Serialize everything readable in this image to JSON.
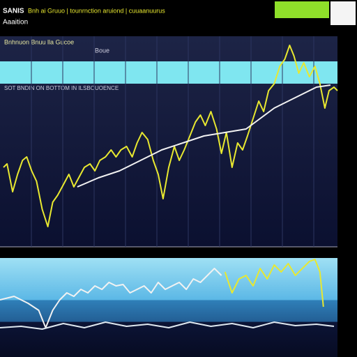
{
  "header": {
    "title": "SANIS",
    "subtitle": "Bnh ai Gruuo | tounrnction aruiond | cuuaanuurus",
    "label": "Aaaition"
  },
  "chart_data": [
    {
      "type": "line",
      "title": "Bnhnuon Bnuu lla Gucoe",
      "subtitle": "Boue",
      "annotation": "SOT BNDIN ON BOTTOM IN ILSBOUOENCE",
      "xlim": [
        0,
        480
      ],
      "ylim": [
        0,
        270
      ],
      "series": [
        {
          "color": "#e8e830",
          "x": [
            5,
            10,
            18,
            25,
            32,
            38,
            45,
            52,
            60,
            68,
            75,
            82,
            90,
            98,
            105,
            112,
            120,
            128,
            135,
            142,
            150,
            158,
            165,
            172,
            180,
            188,
            195,
            202,
            210,
            218,
            225,
            232,
            240,
            248,
            255,
            262,
            270,
            278,
            285,
            292,
            300,
            308,
            315,
            322,
            330,
            338,
            345,
            352,
            360,
            368,
            375,
            382,
            390,
            398,
            405,
            412,
            418,
            425,
            432,
            440,
            448,
            455,
            462,
            468,
            475,
            480
          ],
          "values": [
            90,
            95,
            55,
            80,
            100,
            105,
            85,
            70,
            30,
            5,
            40,
            50,
            65,
            80,
            62,
            75,
            90,
            95,
            85,
            100,
            105,
            115,
            105,
            115,
            120,
            105,
            125,
            140,
            130,
            100,
            80,
            45,
            90,
            120,
            100,
            115,
            135,
            155,
            165,
            150,
            170,
            145,
            110,
            140,
            90,
            125,
            115,
            135,
            160,
            185,
            170,
            200,
            210,
            235,
            245,
            265,
            250,
            225,
            240,
            220,
            235,
            210,
            175,
            200,
            205,
            200
          ]
        },
        {
          "color": "#f2f2f2",
          "x": [
            110,
            140,
            170,
            200,
            230,
            260,
            290,
            320,
            350,
            370,
            390,
            410,
            430,
            450,
            470
          ],
          "values": [
            62,
            75,
            85,
            100,
            115,
            125,
            135,
            140,
            145,
            160,
            175,
            185,
            195,
            205,
            208
          ]
        }
      ]
    },
    {
      "type": "line",
      "xlim": [
        0,
        480
      ],
      "ylim": [
        0,
        142
      ],
      "series": [
        {
          "color": "#e8e830",
          "x": [
            320,
            330,
            340,
            350,
            360,
            370,
            380,
            390,
            400,
            410,
            420,
            430,
            440,
            448,
            455,
            460
          ],
          "values": [
            122,
            92,
            112,
            117,
            102,
            127,
            112,
            132,
            122,
            134,
            117,
            127,
            137,
            140,
            122,
            72
          ]
        },
        {
          "color": "#f2f2f2",
          "x": [
            0,
            20,
            40,
            55,
            65,
            75,
            85,
            95,
            105,
            115,
            125,
            135,
            145,
            155,
            165,
            175,
            185,
            195,
            205,
            215,
            225,
            235,
            245,
            255,
            265,
            275,
            285,
            295,
            305,
            315
          ],
          "values": [
            82,
            87,
            77,
            67,
            42,
            67,
            82,
            92,
            87,
            97,
            92,
            102,
            97,
            107,
            102,
            104,
            92,
            97,
            102,
            92,
            107,
            97,
            102,
            107,
            97,
            112,
            107,
            117,
            127,
            117
          ]
        },
        {
          "color": "#dfe8f0",
          "x": [
            0,
            30,
            60,
            90,
            120,
            150,
            180,
            210,
            240,
            270,
            300,
            330,
            360,
            390,
            420,
            450,
            475
          ],
          "values": [
            42,
            44,
            40,
            48,
            42,
            50,
            44,
            47,
            42,
            50,
            44,
            48,
            42,
            50,
            45,
            47,
            44
          ]
        }
      ]
    }
  ]
}
